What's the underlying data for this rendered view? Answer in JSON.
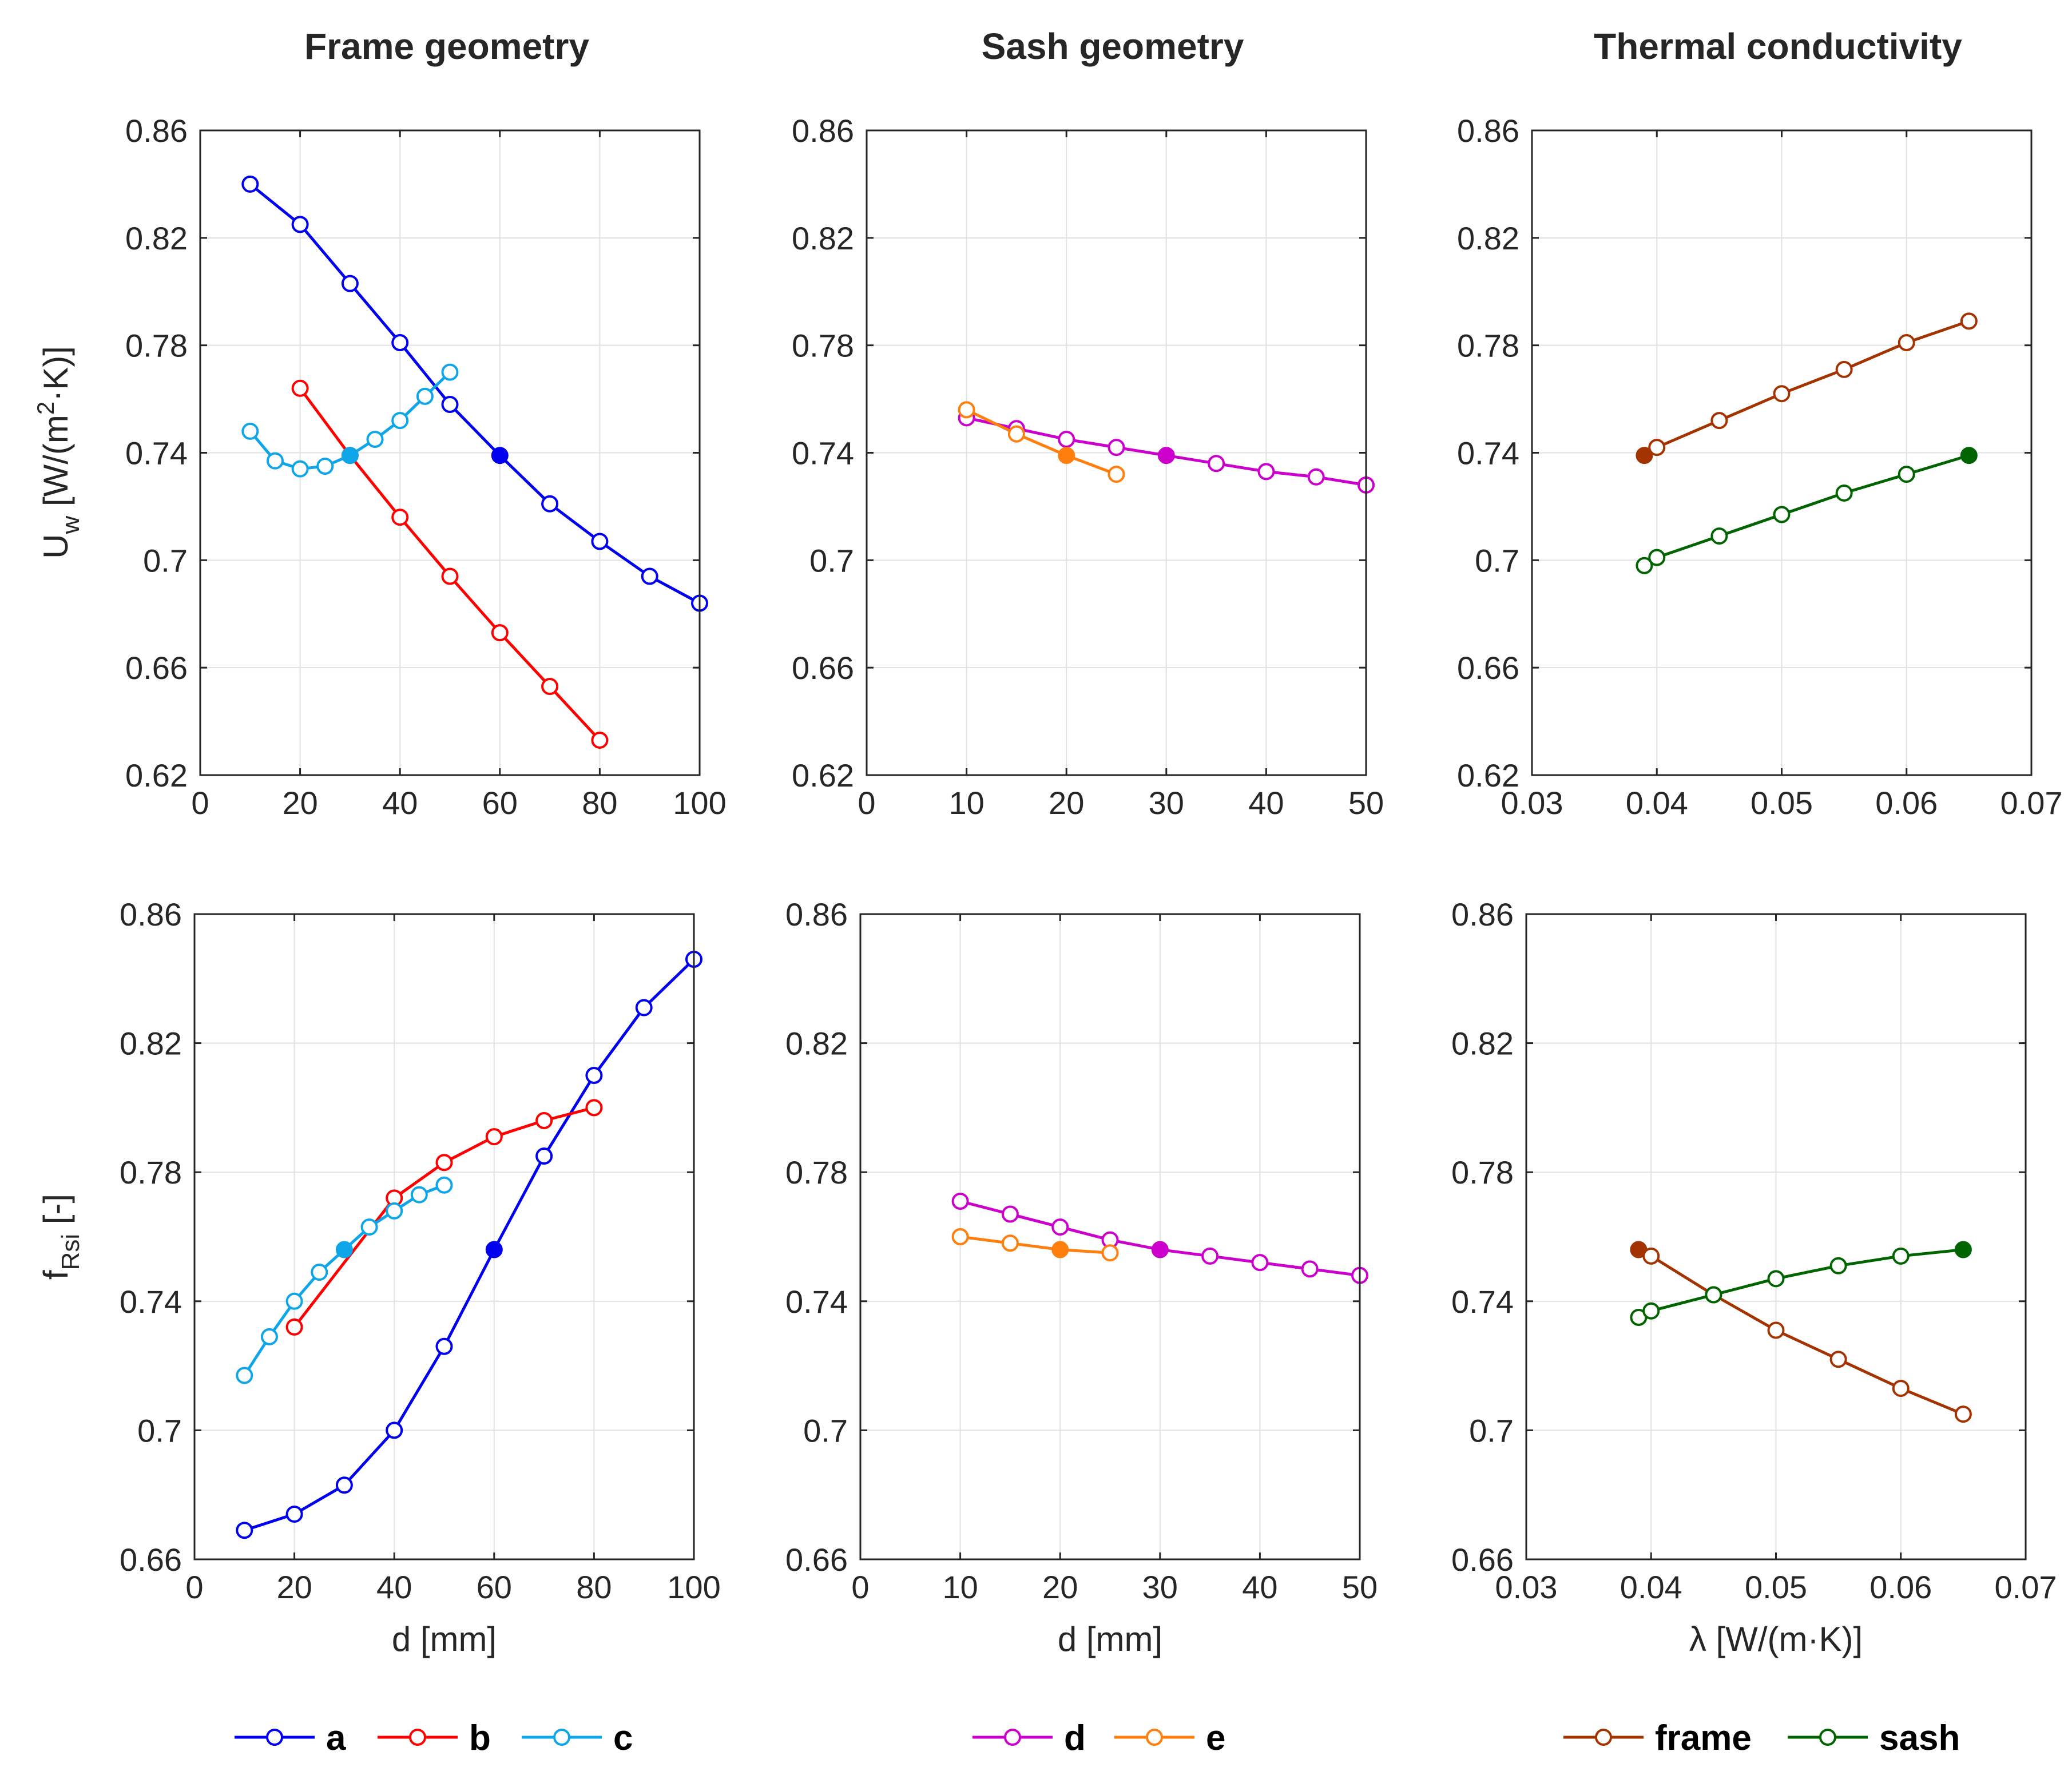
{
  "columns": [
    {
      "title": "Frame geometry"
    },
    {
      "title": "Sash geometry"
    },
    {
      "title": "Thermal conductivity"
    }
  ],
  "legends": [
    {
      "entries": [
        {
          "label": "a",
          "color": "#0000ee"
        },
        {
          "label": "b",
          "color": "#ff0000"
        },
        {
          "label": "c",
          "color": "#0ea5e9"
        }
      ]
    },
    {
      "entries": [
        {
          "label": "d",
          "color": "#cc00cc"
        },
        {
          "label": "e",
          "color": "#ff7f0e"
        }
      ]
    },
    {
      "entries": [
        {
          "label": "frame",
          "color": "#a33300"
        },
        {
          "label": "sash",
          "color": "#006400"
        }
      ]
    }
  ],
  "chart_data": [
    {
      "type": "line",
      "column": "Frame geometry",
      "xlim": [
        0,
        100
      ],
      "xticks": [
        "0",
        "20",
        "40",
        "60",
        "80",
        "100"
      ],
      "ylim": [
        0.62,
        0.86
      ],
      "yticks": [
        "0.62",
        "0.66",
        "0.7",
        "0.74",
        "0.78",
        "0.82",
        "0.86"
      ],
      "xlabel": "",
      "ylabel": "Uw [W/(m2·K)]",
      "series": [
        {
          "name": "a",
          "color": "#0000ee",
          "x": [
            10,
            20,
            30,
            40,
            50,
            60,
            70,
            80,
            90,
            100
          ],
          "y": [
            0.84,
            0.825,
            0.803,
            0.781,
            0.758,
            0.739,
            0.721,
            0.707,
            0.694,
            0.684
          ],
          "reference_x": 60
        },
        {
          "name": "b",
          "color": "#ff0000",
          "x": [
            20,
            30,
            40,
            50,
            60,
            70,
            80
          ],
          "y": [
            0.764,
            0.739,
            0.716,
            0.694,
            0.673,
            0.653,
            0.633
          ],
          "reference_x": 30
        },
        {
          "name": "c",
          "color": "#0ea5e9",
          "x": [
            10,
            15,
            20,
            25,
            30,
            35,
            40,
            45,
            50
          ],
          "y": [
            0.748,
            0.737,
            0.734,
            0.735,
            0.739,
            0.745,
            0.752,
            0.761,
            0.77
          ],
          "reference_x": 30
        }
      ]
    },
    {
      "type": "line",
      "column": "Sash geometry",
      "xlim": [
        0,
        50
      ],
      "xticks": [
        "0",
        "10",
        "20",
        "30",
        "40",
        "50"
      ],
      "ylim": [
        0.62,
        0.86
      ],
      "yticks": [
        "0.62",
        "0.66",
        "0.7",
        "0.74",
        "0.78",
        "0.82",
        "0.86"
      ],
      "xlabel": "",
      "ylabel": "",
      "series": [
        {
          "name": "d",
          "color": "#cc00cc",
          "x": [
            10,
            15,
            20,
            25,
            30,
            35,
            40,
            45,
            50
          ],
          "y": [
            0.753,
            0.749,
            0.745,
            0.742,
            0.739,
            0.736,
            0.733,
            0.731,
            0.728
          ],
          "reference_x": 30
        },
        {
          "name": "e",
          "color": "#ff7f0e",
          "x": [
            10,
            15,
            20,
            25
          ],
          "y": [
            0.756,
            0.747,
            0.739,
            0.732
          ],
          "reference_x": 20
        }
      ]
    },
    {
      "type": "line",
      "column": "Thermal conductivity",
      "xlim": [
        0.03,
        0.07
      ],
      "xticks": [
        "0.03",
        "0.04",
        "0.05",
        "0.06",
        "0.07"
      ],
      "ylim": [
        0.62,
        0.86
      ],
      "yticks": [
        "0.62",
        "0.66",
        "0.7",
        "0.74",
        "0.78",
        "0.82",
        "0.86"
      ],
      "xlabel": "",
      "ylabel": "",
      "series": [
        {
          "name": "frame",
          "color": "#a33300",
          "x": [
            0.039,
            0.04,
            0.045,
            0.05,
            0.055,
            0.06,
            0.065
          ],
          "y": [
            0.739,
            0.742,
            0.752,
            0.762,
            0.771,
            0.781,
            0.789
          ],
          "reference_x": 0.039
        },
        {
          "name": "sash",
          "color": "#006400",
          "x": [
            0.039,
            0.04,
            0.045,
            0.05,
            0.055,
            0.06,
            0.065
          ],
          "y": [
            0.698,
            0.701,
            0.709,
            0.717,
            0.725,
            0.732,
            0.739
          ],
          "reference_x": 0.065
        }
      ]
    },
    {
      "type": "line",
      "column": "Frame geometry",
      "xlim": [
        0,
        100
      ],
      "xticks": [
        "0",
        "20",
        "40",
        "60",
        "80",
        "100"
      ],
      "ylim": [
        0.66,
        0.86
      ],
      "yticks": [
        "0.66",
        "0.7",
        "0.74",
        "0.78",
        "0.82",
        "0.86"
      ],
      "xlabel": "d [mm]",
      "ylabel": "fRsi [-]",
      "series": [
        {
          "name": "a",
          "color": "#0000ee",
          "x": [
            10,
            20,
            30,
            40,
            50,
            60,
            70,
            80,
            90,
            100
          ],
          "y": [
            0.669,
            0.674,
            0.683,
            0.7,
            0.726,
            0.756,
            0.785,
            0.81,
            0.831,
            0.846
          ],
          "reference_x": 60
        },
        {
          "name": "b",
          "color": "#ff0000",
          "x": [
            20,
            40,
            50,
            60,
            70,
            80
          ],
          "y": [
            0.732,
            0.772,
            0.783,
            0.791,
            0.796,
            0.8
          ],
          "reference_x": null
        },
        {
          "name": "c",
          "color": "#0ea5e9",
          "x": [
            10,
            15,
            20,
            25,
            30,
            35,
            40,
            45,
            50
          ],
          "y": [
            0.717,
            0.729,
            0.74,
            0.749,
            0.756,
            0.763,
            0.768,
            0.773,
            0.776
          ],
          "reference_x": 30
        }
      ]
    },
    {
      "type": "line",
      "column": "Sash geometry",
      "xlim": [
        0,
        50
      ],
      "xticks": [
        "0",
        "10",
        "20",
        "30",
        "40",
        "50"
      ],
      "ylim": [
        0.66,
        0.86
      ],
      "yticks": [
        "0.66",
        "0.7",
        "0.74",
        "0.78",
        "0.82",
        "0.86"
      ],
      "xlabel": "d [mm]",
      "ylabel": "",
      "series": [
        {
          "name": "d",
          "color": "#cc00cc",
          "x": [
            10,
            15,
            20,
            25,
            30,
            35,
            40,
            45,
            50
          ],
          "y": [
            0.771,
            0.767,
            0.763,
            0.759,
            0.756,
            0.754,
            0.752,
            0.75,
            0.748
          ],
          "reference_x": 30
        },
        {
          "name": "e",
          "color": "#ff7f0e",
          "x": [
            10,
            15,
            20,
            25
          ],
          "y": [
            0.76,
            0.758,
            0.756,
            0.755
          ],
          "reference_x": 20
        }
      ]
    },
    {
      "type": "line",
      "column": "Thermal conductivity",
      "xlim": [
        0.03,
        0.07
      ],
      "xticks": [
        "0.03",
        "0.04",
        "0.05",
        "0.06",
        "0.07"
      ],
      "ylim": [
        0.66,
        0.86
      ],
      "yticks": [
        "0.66",
        "0.7",
        "0.74",
        "0.78",
        "0.82",
        "0.86"
      ],
      "xlabel": "λ [W/(m·K)]",
      "ylabel": "",
      "series": [
        {
          "name": "frame",
          "color": "#a33300",
          "x": [
            0.039,
            0.04,
            0.045,
            0.05,
            0.055,
            0.06,
            0.065
          ],
          "y": [
            0.756,
            0.754,
            0.742,
            0.731,
            0.722,
            0.713,
            0.705
          ],
          "reference_x": 0.039
        },
        {
          "name": "sash",
          "color": "#006400",
          "x": [
            0.039,
            0.04,
            0.045,
            0.05,
            0.055,
            0.06,
            0.065
          ],
          "y": [
            0.735,
            0.737,
            0.742,
            0.747,
            0.751,
            0.754,
            0.756
          ],
          "reference_x": 0.065
        }
      ]
    }
  ]
}
